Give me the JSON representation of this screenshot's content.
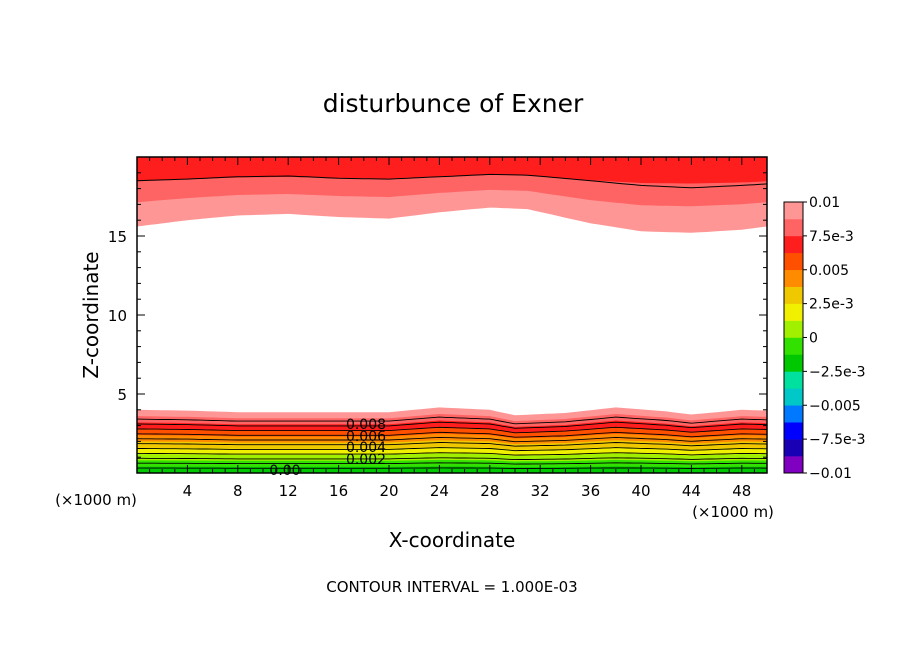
{
  "chart_data": {
    "type": "contour",
    "title": "disturbunce of Exner",
    "xlabel": "X-coordinate",
    "ylabel": "Z-coordinate",
    "x_unit": "(×1000 m)",
    "xlim": [
      0,
      50
    ],
    "ylim": [
      0,
      20
    ],
    "x_ticks": [
      4,
      8,
      12,
      16,
      20,
      24,
      28,
      32,
      36,
      40,
      44,
      48
    ],
    "y_ticks": [
      5,
      10,
      15
    ],
    "contour_interval_text": "CONTOUR INTERVAL = 1.000E-03",
    "contour_labels": [
      "0.008",
      "0.006",
      "0.004",
      "0.002",
      "0.00"
    ],
    "colorbar": {
      "range": [
        -0.01,
        0.01
      ],
      "tick_labels": [
        "0.01",
        "7.5e-3",
        "0.005",
        "2.5e-3",
        "0",
        "−2.5e-3",
        "−0.005",
        "−7.5e-3",
        "−0.01"
      ],
      "colors": [
        "#7f00c0",
        "#1a00b4",
        "#0000ff",
        "#0078ff",
        "#00c8c8",
        "#00e1a0",
        "#00c800",
        "#32e100",
        "#a0f000",
        "#f0f000",
        "#f0c800",
        "#ff8c00",
        "#ff5000",
        "#ff1e1e",
        "#ff6464",
        "#ff9696"
      ]
    },
    "upper_band": {
      "x": [
        0,
        4,
        8,
        12,
        16,
        20,
        24,
        28,
        31,
        36,
        40,
        44,
        48,
        50
      ],
      "outer_edge_z": [
        15.6,
        16.0,
        16.3,
        16.4,
        16.2,
        16.1,
        16.5,
        16.8,
        16.7,
        15.8,
        15.3,
        15.2,
        15.4,
        15.6
      ],
      "contour_z": [
        18.5,
        18.6,
        18.75,
        18.8,
        18.65,
        18.6,
        18.75,
        18.9,
        18.85,
        18.5,
        18.2,
        18.05,
        18.2,
        18.3
      ]
    },
    "lower_band": {
      "x": [
        0,
        4,
        8,
        12,
        16,
        20,
        24,
        28,
        30,
        34,
        38,
        42,
        44,
        48,
        50
      ],
      "top_edge_z": [
        4.0,
        3.95,
        3.85,
        3.85,
        3.85,
        3.85,
        4.15,
        4.0,
        3.65,
        3.8,
        4.15,
        3.9,
        3.7,
        4.0,
        3.95
      ],
      "bottom_z": 0
    }
  }
}
